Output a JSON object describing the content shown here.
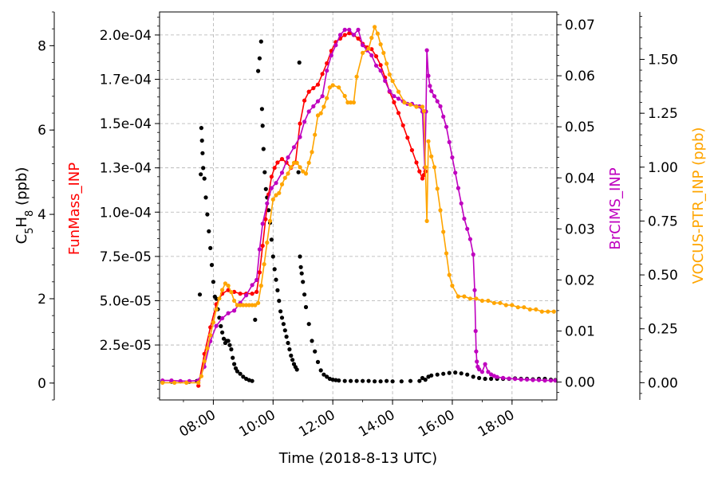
{
  "chart_data": {
    "type": "line",
    "xlabel": "Time (2018-8-13 UTC)",
    "xlim_hours": [
      6.2,
      19.5
    ],
    "x_ticks": [
      {
        "hour": 8,
        "label": "08:00"
      },
      {
        "hour": 10,
        "label": "10:00"
      },
      {
        "hour": 12,
        "label": "12:00"
      },
      {
        "hour": 14,
        "label": "14:00"
      },
      {
        "hour": 16,
        "label": "16:00"
      },
      {
        "hour": 18,
        "label": "18:00"
      }
    ],
    "grid": true,
    "axes": {
      "c5h8": {
        "label_parts": [
          {
            "t": "C"
          },
          {
            "t": "5",
            "sub": true
          },
          {
            "t": "H"
          },
          {
            "t": "8",
            "sub": true
          },
          {
            "t": " (ppb)"
          }
        ],
        "color": "#000000",
        "ylim": [
          -0.4,
          8.8
        ],
        "ticks": [
          0,
          2,
          4,
          6,
          8
        ],
        "tick_labels": [
          "0",
          "2",
          "4",
          "6",
          "8"
        ]
      },
      "funmass": {
        "label": "FunMass_INP",
        "color": "#ff0000",
        "ylim": [
          -6e-06,
          0.000213
        ],
        "ticks": [
          2.5e-05,
          5e-05,
          7.5e-05,
          0.0001,
          0.000125,
          0.00015,
          0.000175,
          0.0002
        ],
        "tick_labels": [
          "2.5e-05",
          "5.0e-05",
          "7.5e-05",
          "1.0e-04",
          "1.3e-04",
          "1.5e-04",
          "1.7e-04",
          "2.0e-04"
        ]
      },
      "brcims": {
        "label": "BrCIMS_INP",
        "color": "#bf00bf",
        "ylim": [
          -0.0035,
          0.0725
        ],
        "ticks": [
          0,
          0.01,
          0.02,
          0.03,
          0.04,
          0.05,
          0.06,
          0.07
        ],
        "tick_labels": [
          "0.00",
          "0.01",
          "0.02",
          "0.03",
          "0.04",
          "0.05",
          "0.06",
          "0.07"
        ]
      },
      "vocus": {
        "label": "VOCUS-PTR_INP (ppb)",
        "color": "#ffa500",
        "ylim": [
          -0.08,
          1.72
        ],
        "ticks": [
          0,
          0.25,
          0.5,
          0.75,
          1.0,
          1.25,
          1.5
        ],
        "tick_labels": [
          "0.00",
          "0.25",
          "0.50",
          "0.75",
          "1.00",
          "1.25",
          "1.50"
        ]
      }
    },
    "series": [
      {
        "axis": "c5h8",
        "color": "#000000",
        "marker_only": true,
        "x": [
          6.3,
          6.6,
          6.9,
          7.2,
          7.45,
          7.55,
          7.58,
          7.6,
          7.62,
          7.64,
          7.66,
          7.7,
          7.75,
          7.8,
          7.85,
          7.9,
          7.95,
          8.0,
          8.05,
          8.1,
          8.15,
          8.2,
          8.25,
          8.3,
          8.35,
          8.4,
          8.45,
          8.5,
          8.55,
          8.6,
          8.65,
          8.7,
          8.75,
          8.8,
          8.9,
          9.0,
          9.1,
          9.2,
          9.3,
          9.4,
          9.5,
          9.55,
          9.6,
          9.63,
          9.65,
          9.68,
          9.72,
          9.76,
          9.8,
          9.85,
          9.9,
          9.95,
          10.0,
          10.05,
          10.1,
          10.15,
          10.2,
          10.25,
          10.3,
          10.35,
          10.4,
          10.45,
          10.5,
          10.55,
          10.6,
          10.65,
          10.7,
          10.75,
          10.8,
          10.85,
          10.88,
          10.9,
          10.93,
          10.96,
          11.0,
          11.05,
          11.1,
          11.2,
          11.3,
          11.4,
          11.5,
          11.6,
          11.7,
          11.8,
          11.9,
          12.0,
          12.1,
          12.2,
          12.4,
          12.6,
          12.8,
          13.0,
          13.2,
          13.4,
          13.6,
          13.8,
          14.0,
          14.3,
          14.6,
          14.9,
          15.0,
          15.1,
          15.2,
          15.3,
          15.5,
          15.7,
          15.9,
          16.1,
          16.3,
          16.5,
          16.7,
          16.9,
          17.1,
          17.3,
          17.5,
          17.7,
          17.9,
          18.1,
          18.3,
          18.5,
          18.7,
          18.9,
          19.1,
          19.3,
          19.45
        ],
        "y": [
          0.03,
          0.03,
          0.04,
          0.03,
          0.05,
          2.1,
          4.95,
          6.05,
          5.75,
          5.45,
          5.1,
          4.85,
          4.4,
          4.0,
          3.6,
          3.2,
          2.8,
          2.4,
          2.05,
          2.0,
          1.75,
          1.55,
          1.35,
          1.2,
          1.05,
          0.95,
          1.0,
          1.0,
          0.9,
          0.8,
          0.6,
          0.45,
          0.35,
          0.28,
          0.22,
          0.15,
          0.1,
          0.07,
          0.05,
          1.5,
          7.4,
          7.7,
          8.1,
          6.5,
          6.1,
          5.55,
          5.0,
          4.6,
          4.4,
          4.1,
          3.8,
          3.4,
          3.0,
          2.7,
          2.45,
          2.2,
          1.95,
          1.7,
          1.55,
          1.4,
          1.25,
          1.1,
          0.95,
          0.8,
          0.65,
          0.55,
          0.45,
          0.38,
          0.32,
          5.0,
          7.6,
          3.0,
          2.75,
          2.6,
          2.4,
          2.1,
          1.8,
          1.4,
          1.0,
          0.75,
          0.5,
          0.3,
          0.2,
          0.15,
          0.1,
          0.08,
          0.07,
          0.06,
          0.05,
          0.05,
          0.05,
          0.05,
          0.05,
          0.04,
          0.04,
          0.05,
          0.04,
          0.04,
          0.05,
          0.05,
          0.12,
          0.08,
          0.15,
          0.18,
          0.2,
          0.22,
          0.24,
          0.25,
          0.23,
          0.2,
          0.15,
          0.12,
          0.1,
          0.1,
          0.1,
          0.1,
          0.1,
          0.11,
          0.1,
          0.1,
          0.09,
          0.1,
          0.1,
          0.08,
          0.07
        ]
      },
      {
        "axis": "funmass",
        "color": "#ff0000",
        "marker_only": false,
        "x": [
          7.5,
          7.7,
          7.9,
          8.1,
          8.3,
          8.5,
          8.7,
          8.9,
          9.1,
          9.3,
          9.45,
          9.55,
          9.65,
          9.75,
          9.85,
          9.95,
          10.05,
          10.15,
          10.3,
          10.45,
          10.6,
          10.75,
          10.9,
          11.05,
          11.2,
          11.35,
          11.5,
          11.65,
          11.8,
          11.95,
          12.1,
          12.25,
          12.4,
          12.55,
          12.7,
          12.85,
          13.0,
          13.15,
          13.3,
          13.45,
          13.6,
          13.75,
          13.9,
          14.05,
          14.2,
          14.35,
          14.5,
          14.65,
          14.8,
          14.9,
          15.0,
          15.05,
          15.1
        ],
        "y": [
          2e-06,
          2e-05,
          3.5e-05,
          4.8e-05,
          5.4e-05,
          5.6e-05,
          5.5e-05,
          5.4e-05,
          5.4e-05,
          5.4e-05,
          5.5e-05,
          6.6e-05,
          8.1e-05,
          9.6e-05,
          0.00011,
          0.00012,
          0.000125,
          0.000128,
          0.00013,
          0.000128,
          0.000125,
          0.000128,
          0.00015,
          0.000163,
          0.000168,
          0.00017,
          0.000172,
          0.000178,
          0.000184,
          0.000191,
          0.000196,
          0.000198,
          0.0002,
          0.000201,
          0.0002,
          0.000198,
          0.000195,
          0.000193,
          0.000192,
          0.000188,
          0.000183,
          0.000176,
          0.000168,
          0.000162,
          0.000156,
          0.000149,
          0.000142,
          0.000135,
          0.000128,
          0.000123,
          0.000119,
          0.000121,
          0.000123
        ]
      },
      {
        "axis": "brcims",
        "color": "#bf00bf",
        "marker_only": false,
        "x": [
          6.3,
          6.6,
          6.9,
          7.2,
          7.5,
          7.7,
          7.9,
          8.1,
          8.3,
          8.5,
          8.7,
          8.9,
          9.1,
          9.3,
          9.45,
          9.55,
          9.65,
          9.8,
          9.95,
          10.1,
          10.3,
          10.5,
          10.7,
          10.9,
          11.05,
          11.2,
          11.35,
          11.5,
          11.65,
          11.8,
          11.95,
          12.1,
          12.25,
          12.4,
          12.55,
          12.7,
          12.85,
          13.0,
          13.15,
          13.3,
          13.45,
          13.6,
          13.75,
          13.9,
          14.05,
          14.2,
          14.35,
          14.5,
          14.65,
          14.8,
          14.9,
          15.0,
          15.08,
          15.12,
          15.15,
          15.2,
          15.25,
          15.3,
          15.4,
          15.5,
          15.6,
          15.7,
          15.8,
          15.9,
          16.0,
          16.1,
          16.2,
          16.3,
          16.4,
          16.5,
          16.6,
          16.7,
          16.75,
          16.78,
          16.8,
          16.82,
          16.85,
          16.9,
          17.0,
          17.1,
          17.2,
          17.3,
          17.4,
          17.5,
          17.7,
          17.9,
          18.1,
          18.3,
          18.5,
          18.7,
          18.9,
          19.1,
          19.3,
          19.45
        ],
        "y": [
          0.0003,
          0.0003,
          0.0002,
          0.0002,
          0.0003,
          0.003,
          0.008,
          0.011,
          0.0125,
          0.0135,
          0.014,
          0.0155,
          0.017,
          0.019,
          0.02,
          0.026,
          0.031,
          0.035,
          0.038,
          0.039,
          0.041,
          0.044,
          0.046,
          0.048,
          0.051,
          0.053,
          0.054,
          0.055,
          0.056,
          0.061,
          0.064,
          0.066,
          0.068,
          0.069,
          0.069,
          0.068,
          0.069,
          0.066,
          0.065,
          0.064,
          0.062,
          0.061,
          0.059,
          0.057,
          0.056,
          0.0555,
          0.055,
          0.0545,
          0.0545,
          0.054,
          0.054,
          0.053,
          0.042,
          0.053,
          0.065,
          0.06,
          0.058,
          0.057,
          0.056,
          0.055,
          0.054,
          0.052,
          0.05,
          0.047,
          0.044,
          0.041,
          0.038,
          0.035,
          0.032,
          0.03,
          0.028,
          0.025,
          0.018,
          0.01,
          0.006,
          0.004,
          0.003,
          0.0025,
          0.002,
          0.0035,
          0.002,
          0.0015,
          0.0012,
          0.001,
          0.0008,
          0.0007,
          0.0006,
          0.0005,
          0.0005,
          0.0004,
          0.0004,
          0.0003,
          0.0003,
          0.0003
        ]
      },
      {
        "axis": "vocus",
        "color": "#ffa500",
        "marker_only": false,
        "x": [
          6.3,
          6.7,
          7.1,
          7.5,
          7.6,
          7.7,
          7.8,
          7.9,
          8.0,
          8.1,
          8.2,
          8.3,
          8.4,
          8.5,
          8.6,
          8.7,
          8.8,
          8.9,
          9.0,
          9.1,
          9.2,
          9.3,
          9.4,
          9.5,
          9.6,
          9.7,
          9.8,
          9.9,
          10.0,
          10.1,
          10.2,
          10.3,
          10.4,
          10.5,
          10.6,
          10.7,
          10.8,
          10.9,
          11.0,
          11.1,
          11.2,
          11.3,
          11.4,
          11.5,
          11.6,
          11.7,
          11.8,
          11.9,
          12.0,
          12.2,
          12.4,
          12.5,
          12.6,
          12.7,
          12.8,
          13.0,
          13.2,
          13.3,
          13.4,
          13.5,
          13.6,
          13.7,
          13.8,
          13.9,
          14.0,
          14.2,
          14.4,
          14.6,
          14.8,
          15.0,
          15.05,
          15.1,
          15.15,
          15.2,
          15.3,
          15.4,
          15.5,
          15.6,
          15.7,
          15.8,
          15.9,
          16.0,
          16.2,
          16.4,
          16.6,
          16.8,
          17.0,
          17.2,
          17.4,
          17.6,
          17.8,
          18.0,
          18.2,
          18.4,
          18.6,
          18.8,
          19.0,
          19.2,
          19.4
        ],
        "y": [
          0.0,
          0.0,
          0.0,
          0.0,
          0.03,
          0.1,
          0.16,
          0.22,
          0.28,
          0.34,
          0.39,
          0.43,
          0.46,
          0.45,
          0.42,
          0.38,
          0.36,
          0.36,
          0.36,
          0.36,
          0.36,
          0.36,
          0.36,
          0.37,
          0.45,
          0.55,
          0.65,
          0.75,
          0.85,
          0.87,
          0.88,
          0.92,
          0.95,
          0.97,
          1.0,
          1.02,
          1.02,
          1.0,
          0.98,
          0.97,
          1.02,
          1.07,
          1.15,
          1.24,
          1.25,
          1.28,
          1.32,
          1.37,
          1.38,
          1.37,
          1.33,
          1.3,
          1.3,
          1.3,
          1.42,
          1.53,
          1.55,
          1.6,
          1.65,
          1.62,
          1.57,
          1.53,
          1.48,
          1.43,
          1.4,
          1.35,
          1.3,
          1.29,
          1.28,
          1.28,
          1.26,
          1.0,
          0.75,
          1.12,
          1.05,
          1.0,
          0.9,
          0.8,
          0.7,
          0.6,
          0.5,
          0.45,
          0.4,
          0.4,
          0.39,
          0.39,
          0.38,
          0.38,
          0.37,
          0.37,
          0.36,
          0.36,
          0.35,
          0.35,
          0.34,
          0.34,
          0.33,
          0.33,
          0.33
        ]
      }
    ]
  }
}
